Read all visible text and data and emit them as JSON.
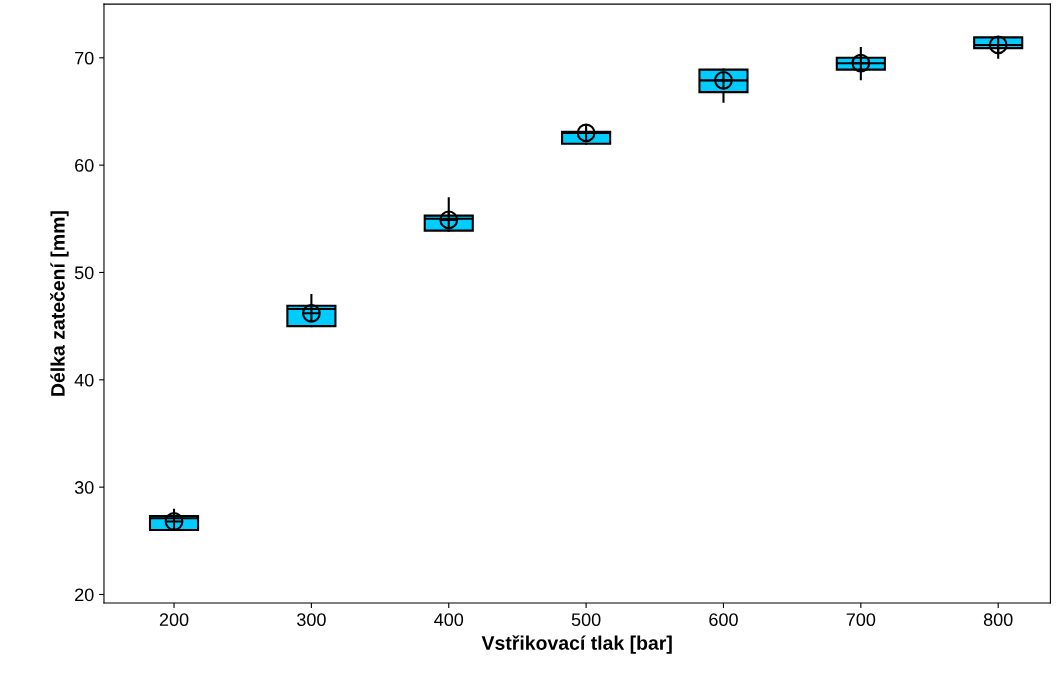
{
  "chart_data": {
    "type": "box",
    "xlabel": "Vstřikovací tlak [bar]",
    "ylabel": "Délka zatečení [mm]",
    "x": [
      200,
      300,
      400,
      500,
      600,
      700,
      800
    ],
    "boxes": [
      {
        "low": 26.0,
        "q1": 26.0,
        "median": 27.1,
        "q3": 27.3,
        "high": 27.9,
        "mean": 26.8
      },
      {
        "low": 45.0,
        "q1": 45.0,
        "median": 46.6,
        "q3": 46.9,
        "high": 47.9,
        "mean": 46.2
      },
      {
        "low": 53.9,
        "q1": 53.9,
        "median": 55.0,
        "q3": 55.3,
        "high": 56.9,
        "mean": 54.9
      },
      {
        "low": 62.0,
        "q1": 62.0,
        "median": 63.0,
        "q3": 63.1,
        "high": 63.1,
        "mean": 63.0
      },
      {
        "low": 65.9,
        "q1": 66.8,
        "median": 67.9,
        "q3": 68.9,
        "high": 68.9,
        "mean": 67.9
      },
      {
        "low": 68.0,
        "q1": 68.9,
        "median": 69.5,
        "q3": 70.0,
        "high": 70.9,
        "mean": 69.5
      },
      {
        "low": 70.0,
        "q1": 70.9,
        "median": 71.2,
        "q3": 71.9,
        "high": 71.9,
        "mean": 71.2
      }
    ],
    "color": "#00ccff",
    "xlim": [
      149,
      838
    ],
    "xticks": [
      200,
      300,
      400,
      500,
      600,
      700,
      800
    ],
    "ylim": [
      19.2,
      75
    ],
    "yticks": [
      20,
      30,
      40,
      50,
      60,
      70
    ],
    "grid": false,
    "legend": false
  }
}
